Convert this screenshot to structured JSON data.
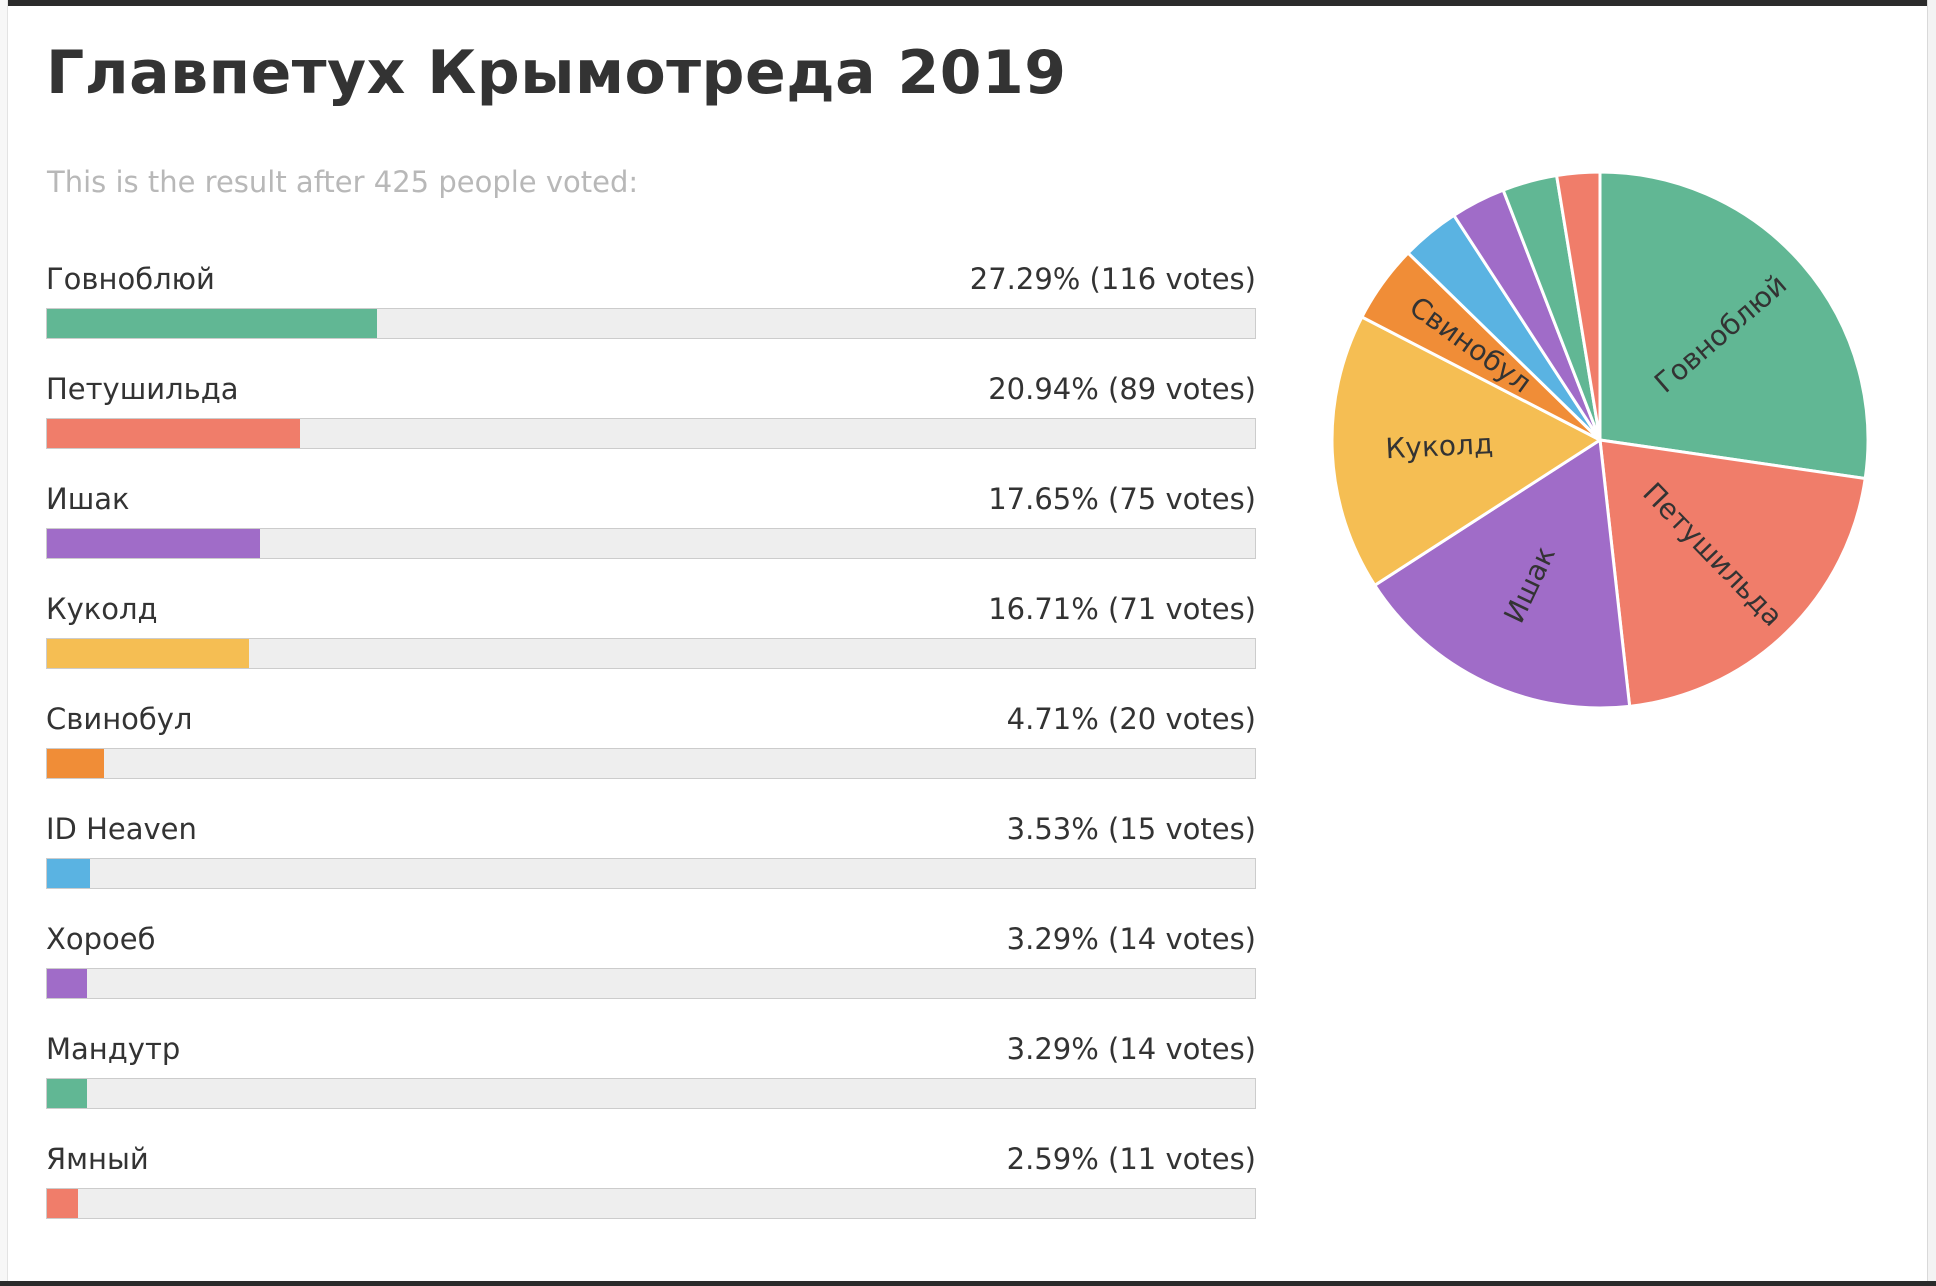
{
  "page": {
    "title": "Главпетух Крымотреда 2019",
    "subtitle": "This is the result after 425 people voted:"
  },
  "results": [
    {
      "name": "Говноблюй",
      "stat": "27.29% (116 votes)",
      "percent": 27.29,
      "votes": 116,
      "color": "#61b794"
    },
    {
      "name": "Петушильда",
      "stat": "20.94% (89 votes)",
      "percent": 20.94,
      "votes": 89,
      "color": "#f07d6a"
    },
    {
      "name": "Ишак",
      "stat": "17.65% (75 votes)",
      "percent": 17.65,
      "votes": 75,
      "color": "#a06cc8"
    },
    {
      "name": "Куколд",
      "stat": "16.71% (71 votes)",
      "percent": 16.71,
      "votes": 71,
      "color": "#f5be53"
    },
    {
      "name": "Свинобул",
      "stat": "4.71% (20 votes)",
      "percent": 4.71,
      "votes": 20,
      "color": "#f08d37"
    },
    {
      "name": "ID Heaven",
      "stat": "3.53% (15 votes)",
      "percent": 3.53,
      "votes": 15,
      "color": "#5ab3e2"
    },
    {
      "name": "Хороеб",
      "stat": "3.29% (14 votes)",
      "percent": 3.29,
      "votes": 14,
      "color": "#a06cc8"
    },
    {
      "name": "Мандутр",
      "stat": "3.29% (14 votes)",
      "percent": 3.29,
      "votes": 14,
      "color": "#61b794"
    },
    {
      "name": "Ямный",
      "stat": "2.59% (11 votes)",
      "percent": 2.59,
      "votes": 11,
      "color": "#f07d6a"
    }
  ],
  "chart_data": {
    "type": "pie",
    "total_votes": 425,
    "categories": [
      "Говноблюй",
      "Петушильда",
      "Ишак",
      "Куколд",
      "Свинобул",
      "ID Heaven",
      "Хороеб",
      "Мандутр",
      "Ямный"
    ],
    "values": [
      116,
      89,
      75,
      71,
      20,
      15,
      14,
      14,
      11
    ],
    "percents": [
      27.29,
      20.94,
      17.65,
      16.71,
      4.71,
      3.53,
      3.29,
      3.29,
      2.59
    ],
    "colors": [
      "#61b794",
      "#f07d6a",
      "#a06cc8",
      "#f5be53",
      "#f08d37",
      "#5ab3e2",
      "#a06cc8",
      "#61b794",
      "#f07d6a"
    ],
    "slice_labels": [
      "Говноблюй",
      "Петушильда",
      "Ишак",
      "Куколд",
      "Свинобул",
      "",
      "",
      "",
      ""
    ],
    "start_angle_deg": 0,
    "direction": "clockwise",
    "legend": "none"
  }
}
